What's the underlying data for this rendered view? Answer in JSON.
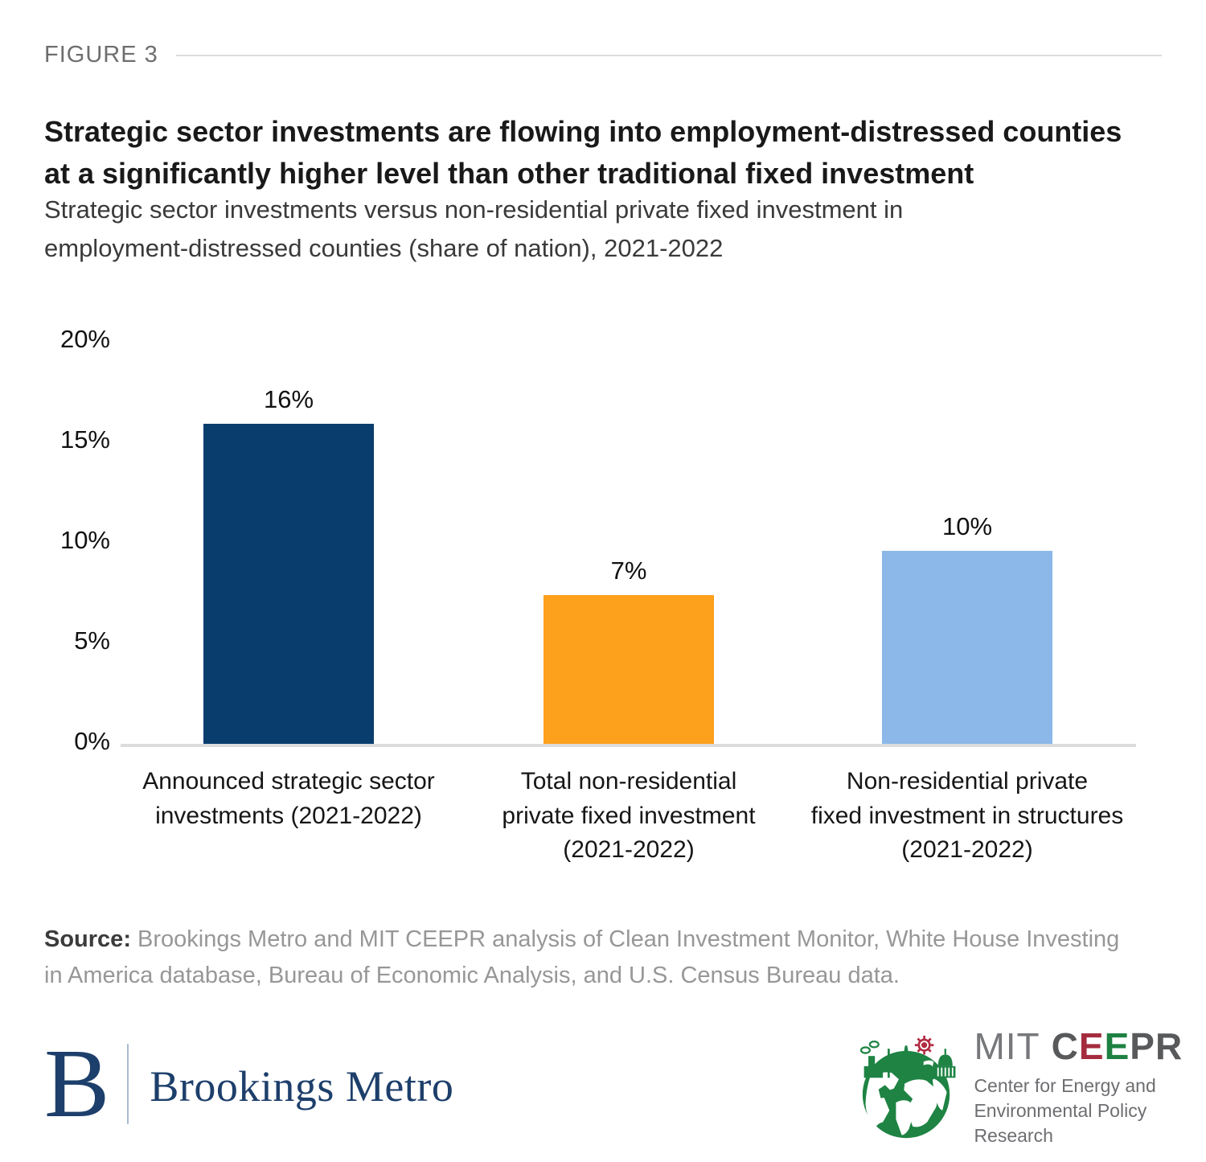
{
  "figure_label": "FIGURE 3",
  "title_lines": [
    "Strategic sector investments are flowing into employment-distressed counties",
    "at a significantly higher level than other traditional fixed investment"
  ],
  "subtitle_lines": [
    "Strategic sector investments versus non-residential private fixed investment in",
    "employment-distressed counties (share of nation), 2021-2022"
  ],
  "chart_data": {
    "type": "bar",
    "title": "Strategic sector investments are flowing into employment-distressed counties at a significantly higher level than other traditional fixed investment",
    "subtitle": "Strategic sector investments versus non-residential private fixed investment in employment-distressed counties (share of nation), 2021-2022",
    "categories": [
      "Announced strategic sector investments (2021-2022)",
      "Total non-residential private fixed investment (2021-2022)",
      "Non-residential private fixed investment in structures (2021-2022)"
    ],
    "category_lines": [
      [
        "Announced strategic sector",
        "investments (2021-2022)"
      ],
      [
        "Total non-residential",
        "private fixed investment",
        "(2021-2022)"
      ],
      [
        "Non-residential private",
        "fixed investment in structures",
        "(2021-2022)"
      ]
    ],
    "values": [
      16,
      7,
      10
    ],
    "values_precise": [
      15.9,
      7.4,
      9.6
    ],
    "data_labels": [
      "16%",
      "7%",
      "10%"
    ],
    "bar_colors": [
      "#083d6e",
      "#fda01c",
      "#8bb8e8"
    ],
    "xlabel": "",
    "ylabel": "",
    "ylim": [
      0,
      20
    ],
    "yticks": [
      0,
      5,
      10,
      15,
      20
    ],
    "ytick_labels": [
      "0%",
      "5%",
      "10%",
      "15%",
      "20%"
    ],
    "grid": false,
    "legend": false
  },
  "source": {
    "label": "Source:",
    "text": " Brookings Metro and MIT CEEPR analysis of Clean Investment Monitor, White House Investing in America database, Bureau of Economic Analysis, and U.S. Census Bureau data."
  },
  "footer": {
    "brookings": {
      "initial": "B",
      "name": "Brookings Metro"
    },
    "ceepr": {
      "mit": "MIT",
      "ceepr_letters": [
        {
          "ch": "C",
          "color": "#58595b"
        },
        {
          "ch": "E",
          "color": "#a42c3e"
        },
        {
          "ch": "E",
          "color": "#1e8142"
        },
        {
          "ch": "P",
          "color": "#58595b"
        },
        {
          "ch": "R",
          "color": "#58595b"
        }
      ],
      "tagline_lines": [
        "Center for Energy and",
        "Environmental Policy Research"
      ]
    }
  },
  "colors": {
    "navy_bar": "#083d6e",
    "orange_bar": "#fda01c",
    "light_blue_bar": "#8bb8e8",
    "axis_line": "#dcdcdc",
    "figure_label": "#6e6e6e",
    "source_gray": "#979797",
    "brookings_navy": "#1d3f6b",
    "ceepr_green": "#1e8142",
    "ceepr_red": "#a42c3e",
    "ceepr_gray": "#6d6e71"
  }
}
